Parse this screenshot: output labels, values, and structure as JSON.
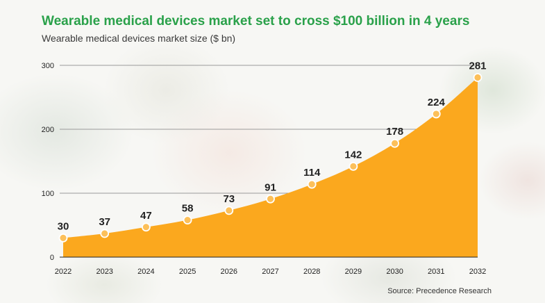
{
  "title": "Wearable medical devices market set to cross $100 billion in 4 years",
  "subtitle": "Wearable medical devices market size ($ bn)",
  "source": "Source: Precedence Research",
  "chart_data": {
    "type": "area",
    "title": "Wearable medical devices market set to cross $100 billion in 4 years",
    "subtitle": "Wearable medical devices market size ($ bn)",
    "categories": [
      "2022",
      "2023",
      "2024",
      "2025",
      "2026",
      "2027",
      "2028",
      "2029",
      "2030",
      "2031",
      "2032"
    ],
    "values": [
      30,
      37,
      47,
      58,
      73,
      91,
      114,
      142,
      178,
      224,
      281
    ],
    "ylim": [
      0,
      300
    ],
    "yticks": [
      0,
      100,
      200,
      300
    ],
    "grid": true,
    "fill_color": "#fba81e",
    "marker_color": "#fcc05a",
    "gridline_color": "#9a9a9a"
  }
}
